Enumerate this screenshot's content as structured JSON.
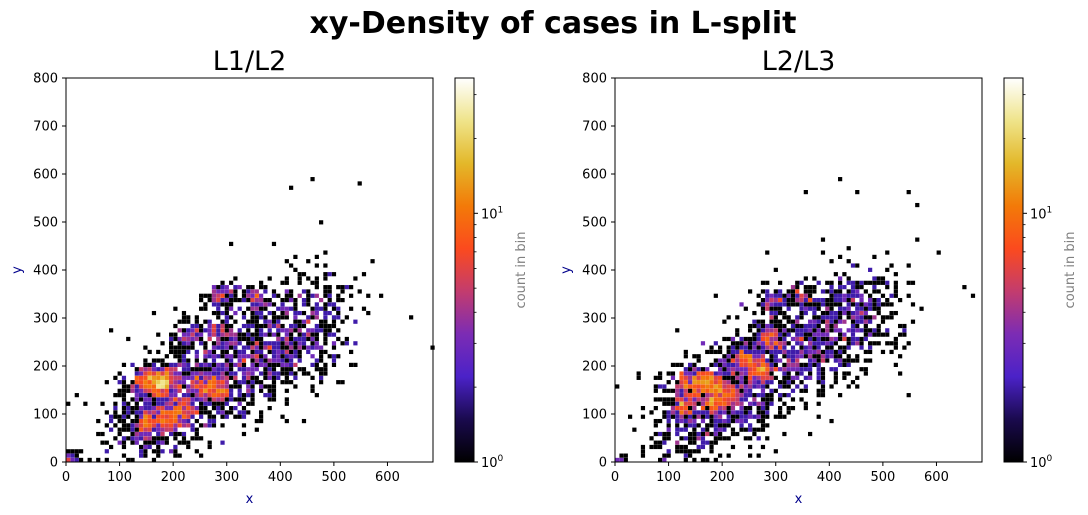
{
  "title": "xy-Density of cases in L-split",
  "colors": {
    "axis_label": "#00008b",
    "colorbar_label": "#808080",
    "colormap": [
      "#000000",
      "#1a0a4e",
      "#4b22c8",
      "#7c2cb4",
      "#c33c6e",
      "#fb4a1e",
      "#f37a08",
      "#e3b82a",
      "#efe48a",
      "#ffffff"
    ]
  },
  "chart_data": [
    {
      "type": "hexbin",
      "title": "L1/L2",
      "xlabel": "x",
      "ylabel": "y",
      "xlim": [
        0,
        685
      ],
      "ylim": [
        0,
        800
      ],
      "xticks": [
        "0",
        "100",
        "200",
        "300",
        "400",
        "500",
        "600"
      ],
      "yticks": [
        "0",
        "100",
        "200",
        "300",
        "400",
        "500",
        "600",
        "700",
        "800"
      ],
      "colorbar": {
        "label": "count in bin",
        "scale": "log",
        "range": [
          1,
          35
        ],
        "ticks": [
          "10^0",
          "10^1"
        ]
      },
      "dense_clusters": [
        {
          "x": 155,
          "y": 170,
          "peak": 22
        },
        {
          "x": 180,
          "y": 165,
          "peak": 30
        },
        {
          "x": 150,
          "y": 80,
          "peak": 12
        },
        {
          "x": 190,
          "y": 95,
          "peak": 14
        },
        {
          "x": 215,
          "y": 100,
          "peak": 12
        },
        {
          "x": 280,
          "y": 150,
          "peak": 18
        },
        {
          "x": 245,
          "y": 160,
          "peak": 8
        },
        {
          "x": 230,
          "y": 265,
          "peak": 8
        },
        {
          "x": 285,
          "y": 270,
          "peak": 9
        },
        {
          "x": 290,
          "y": 345,
          "peak": 10
        },
        {
          "x": 350,
          "y": 345,
          "peak": 8
        },
        {
          "x": 5,
          "y": 5,
          "peak": 6
        }
      ],
      "outliers": [
        [
          420,
          568
        ],
        [
          458,
          585
        ],
        [
          548,
          578
        ],
        [
          570,
          420
        ],
        [
          590,
          345
        ],
        [
          640,
          300
        ],
        [
          682,
          240
        ],
        [
          470,
          200
        ],
        [
          310,
          455
        ],
        [
          390,
          455
        ]
      ]
    },
    {
      "type": "hexbin",
      "title": "L2/L3",
      "xlabel": "x",
      "ylabel": "y",
      "xlim": [
        0,
        685
      ],
      "ylim": [
        0,
        800
      ],
      "xticks": [
        "0",
        "100",
        "200",
        "300",
        "400",
        "500",
        "600"
      ],
      "yticks": [
        "0",
        "100",
        "200",
        "300",
        "400",
        "500",
        "600",
        "700",
        "800"
      ],
      "colorbar": {
        "label": "count in bin",
        "scale": "log",
        "range": [
          1,
          35
        ],
        "ticks": [
          "10^0",
          "10^1"
        ]
      },
      "dense_clusters": [
        {
          "x": 140,
          "y": 165,
          "peak": 18
        },
        {
          "x": 125,
          "y": 110,
          "peak": 12
        },
        {
          "x": 175,
          "y": 165,
          "peak": 22
        },
        {
          "x": 185,
          "y": 130,
          "peak": 14
        },
        {
          "x": 215,
          "y": 140,
          "peak": 12
        },
        {
          "x": 235,
          "y": 215,
          "peak": 12
        },
        {
          "x": 270,
          "y": 195,
          "peak": 16
        },
        {
          "x": 285,
          "y": 260,
          "peak": 12
        },
        {
          "x": 295,
          "y": 335,
          "peak": 8
        },
        {
          "x": 345,
          "y": 345,
          "peak": 6
        },
        {
          "x": 3,
          "y": 3,
          "peak": 3
        }
      ],
      "outliers": [
        [
          418,
          590
        ],
        [
          352,
          565
        ],
        [
          455,
          565
        ],
        [
          545,
          565
        ],
        [
          560,
          535
        ],
        [
          565,
          460
        ],
        [
          40,
          175
        ],
        [
          650,
          360
        ],
        [
          665,
          345
        ],
        [
          600,
          435
        ],
        [
          390,
          465
        ]
      ]
    }
  ]
}
